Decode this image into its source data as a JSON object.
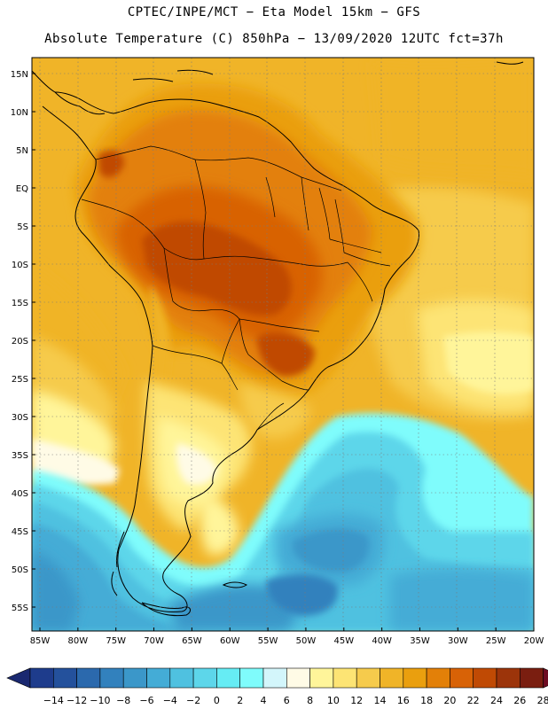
{
  "header": {
    "line1": "CPTEC/INPE/MCT −  Eta Model 15km − GFS",
    "line2": "Absolute Temperature (C) 850hPa − 13/09/2020 12UTC fct=37h"
  },
  "map": {
    "lat_labels": [
      "15N",
      "10N",
      "5N",
      "EQ",
      "5S",
      "10S",
      "15S",
      "20S",
      "25S",
      "30S",
      "35S",
      "40S",
      "45S",
      "50S",
      "55S"
    ],
    "lon_labels": [
      "85W",
      "80W",
      "75W",
      "70W",
      "65W",
      "60W",
      "55W",
      "50W",
      "45W",
      "40W",
      "35W",
      "30W",
      "25W",
      "20W"
    ]
  },
  "colorbar": {
    "labels": [
      "−14",
      "−12",
      "−10",
      "−8",
      "−6",
      "−4",
      "−2",
      "0",
      "2",
      "4",
      "6",
      "8",
      "10",
      "12",
      "14",
      "16",
      "18",
      "20",
      "22",
      "24",
      "26",
      "28"
    ],
    "colors": [
      "#1e3c8c",
      "#24519c",
      "#2b69ad",
      "#3281bd",
      "#3b97c9",
      "#44acd6",
      "#4fc1e0",
      "#5dd6ea",
      "#66ecf4",
      "#7ffcfc",
      "#d3f6fb",
      "#fffbe6",
      "#fff59a",
      "#fde474",
      "#f6cb4c",
      "#f0b428",
      "#ea9f0e",
      "#e38008",
      "#d86206",
      "#c04a04",
      "#9c340a",
      "#7a1e10"
    ],
    "under_color": "#1a2870",
    "over_color": "#6e0c22"
  }
}
